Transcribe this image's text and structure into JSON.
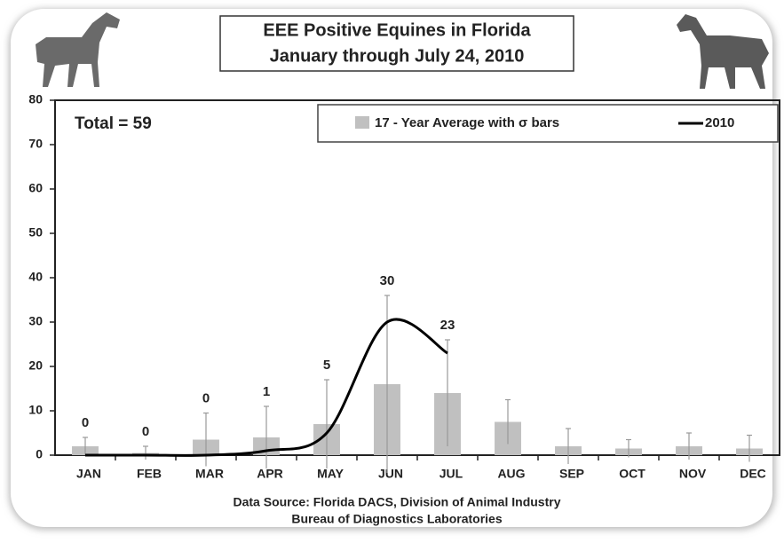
{
  "chart_data": {
    "type": "bar",
    "title": "EEE Positive Equines in Florida",
    "subtitle": "January through July 24, 2010",
    "annotation": "Total = 59",
    "source": [
      "Data Source: Florida DACS, Division of Animal Industry",
      "Bureau of Diagnostics Laboratories"
    ],
    "categories": [
      "JAN",
      "FEB",
      "MAR",
      "APR",
      "MAY",
      "JUN",
      "JUL",
      "AUG",
      "SEP",
      "OCT",
      "NOV",
      "DEC"
    ],
    "series": [
      {
        "name": "17 - Year Average with σ bars",
        "type": "bar",
        "color": "#c0c0c0",
        "values": [
          2,
          0.5,
          3.5,
          4,
          7,
          16,
          14,
          7.5,
          2,
          1.5,
          2,
          1.5
        ],
        "errors": [
          2,
          1.5,
          6,
          7,
          10,
          20,
          12,
          5,
          4,
          2,
          3,
          3
        ]
      },
      {
        "name": "2010",
        "type": "line",
        "color": "#000000",
        "values": [
          0,
          0,
          0,
          1,
          5,
          30,
          23,
          null,
          null,
          null,
          null,
          null
        ]
      }
    ],
    "ylim": [
      0,
      80
    ],
    "yticks": [
      0,
      10,
      20,
      30,
      40,
      50,
      60,
      70,
      80
    ],
    "grid": false
  }
}
